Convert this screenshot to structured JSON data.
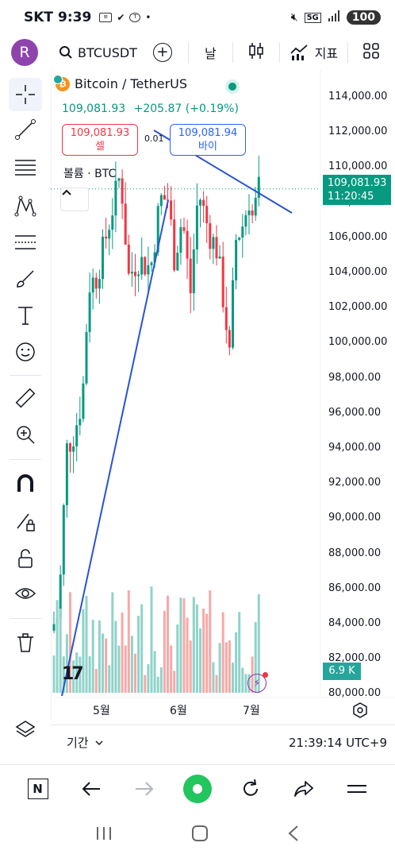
{
  "status_bar": {
    "carrier": "SKT",
    "time": "9:39",
    "battery": "100",
    "network": "5G"
  },
  "toolbar": {
    "avatar_letter": "R",
    "symbol": "BTCUSDT",
    "interval": "날",
    "indicators_label": "지표"
  },
  "legend": {
    "title": "Bitcoin / TetherUS",
    "last": "109,081.93",
    "change": "+205.87",
    "change_pct": "(+0.19%)",
    "sell_price": "109,081.93",
    "sell_label": "셀",
    "buy_price": "109,081.94",
    "buy_label": "바이",
    "spread": "0.01",
    "volume_label": "볼륨 · BTC"
  },
  "price_axis": [
    "114,000.00",
    "112,000.00",
    "110,000.00",
    "108,000.00",
    "106,000.00",
    "104,000.00",
    "102,000.00",
    "100,000.00",
    "98,000.00",
    "96,000.00",
    "94,000.00",
    "92,000.00",
    "90,000.00",
    "88,000.00",
    "86,000.00",
    "84,000.00",
    "82,000.00",
    "80,000.00"
  ],
  "time_axis": [
    "5월",
    "6월",
    "7월"
  ],
  "current_price": {
    "price": "109,081.93",
    "countdown": "11:20:45"
  },
  "volume_value": "6.9 K",
  "period_bar": {
    "period_label": "기간",
    "clock": "21:39:14 UTC+9"
  },
  "colors": {
    "up": "#089981",
    "down": "#f23645",
    "vol_up": "#8fd3c9",
    "vol_down": "#f7a9a7",
    "trendline": "#2952d3"
  },
  "chart_data": {
    "type": "candlestick",
    "symbol": "BTCUSDT",
    "interval": "1D",
    "ylim": [
      80000,
      114500
    ],
    "x_ticks": [
      "5월",
      "6월",
      "7월"
    ],
    "last_price": 109081.93,
    "last_volume_k": 6.9
  },
  "icons": {
    "left_tools": [
      "crosshair-icon",
      "trendline-icon",
      "fib-icon",
      "pattern-icon",
      "prediction-icon",
      "brush-icon",
      "text-icon",
      "emoji-icon",
      "ruler-icon",
      "zoom-icon",
      "magnet-icon",
      "lock-draw-icon",
      "unlock-icon",
      "eye-icon",
      "trash-icon",
      "layers-icon"
    ]
  }
}
